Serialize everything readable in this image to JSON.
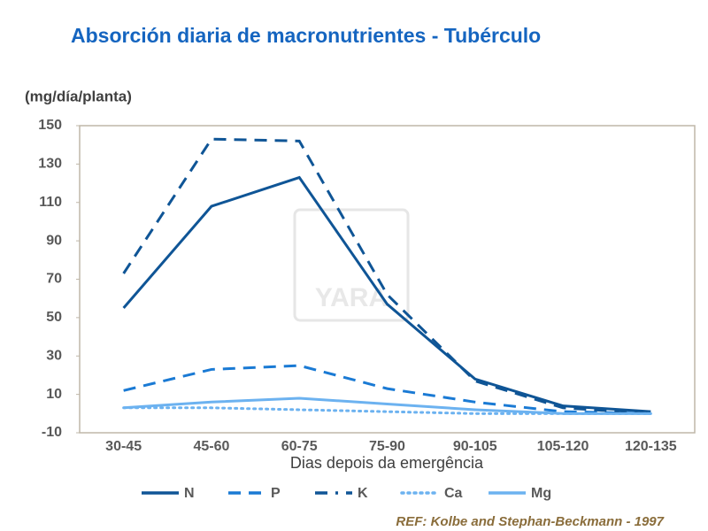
{
  "chart_data": {
    "type": "line",
    "title": "Absorción diaria de macronutrientes - Tubérculo",
    "y_axis_label": "(mg/día/planta)",
    "x_axis_label": "Dias depois da emergência",
    "note": "REF: Kolbe and Stephan-Beckmann - 1997",
    "watermark": "YARA",
    "categories": [
      "30-45",
      "45-60",
      "60-75",
      "75-90",
      "90-105",
      "105-120",
      "120-135"
    ],
    "series": [
      {
        "name": "N",
        "color": "#0f5596",
        "style": "solid",
        "values": [
          55,
          108,
          123,
          57,
          18,
          4,
          1
        ]
      },
      {
        "name": "P",
        "color": "#1a7ad4",
        "style": "dashed",
        "values": [
          12,
          23,
          25,
          13,
          6,
          1,
          0
        ]
      },
      {
        "name": "K",
        "color": "#0f5596",
        "style": "dashdot",
        "values": [
          73,
          143,
          142,
          62,
          17,
          3,
          0
        ]
      },
      {
        "name": "Ca",
        "color": "#6cb2f0",
        "style": "dotted",
        "values": [
          3,
          3,
          2,
          1,
          0,
          0,
          0
        ]
      },
      {
        "name": "Mg",
        "color": "#6cb2f0",
        "style": "solid",
        "values": [
          3,
          6,
          8,
          5,
          2,
          0,
          0
        ]
      }
    ],
    "ylim": [
      -10,
      150
    ],
    "yticks": [
      -10,
      10,
      30,
      50,
      70,
      90,
      110,
      130,
      150
    ],
    "legend": "bottom"
  }
}
